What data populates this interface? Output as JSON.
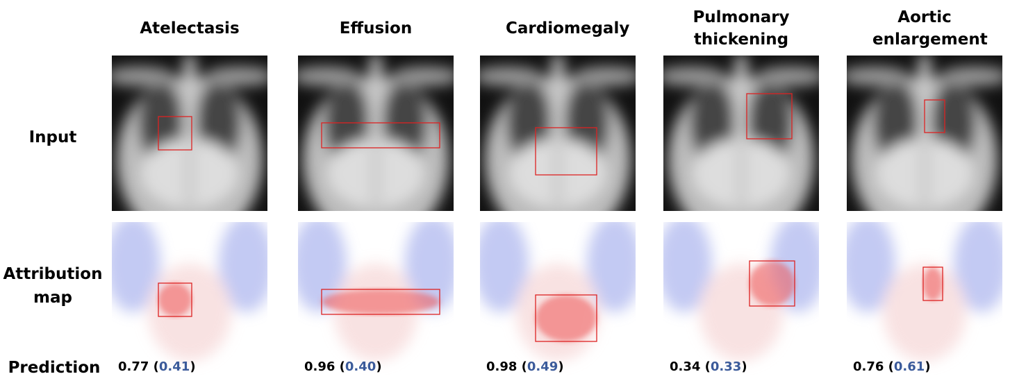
{
  "row_labels": {
    "input": "Input",
    "attribution": "Attribution map",
    "prediction": "Prediction"
  },
  "columns": [
    {
      "title": "Atelectasis",
      "prediction": [
        "0.77 (",
        "0.41",
        ")"
      ]
    },
    {
      "title": "Effusion",
      "prediction": [
        "0.96 (",
        "0.40",
        ")"
      ]
    },
    {
      "title": "Cardiomegaly",
      "prediction": [
        "0.98 (",
        "0.49",
        ")"
      ]
    },
    {
      "title": "Pulmonary thickening",
      "prediction": [
        "0.34 (",
        "0.33",
        ")"
      ]
    },
    {
      "title": "Aortic enlargement",
      "prediction": [
        "0.76 (",
        "0.61",
        ")"
      ]
    }
  ]
}
